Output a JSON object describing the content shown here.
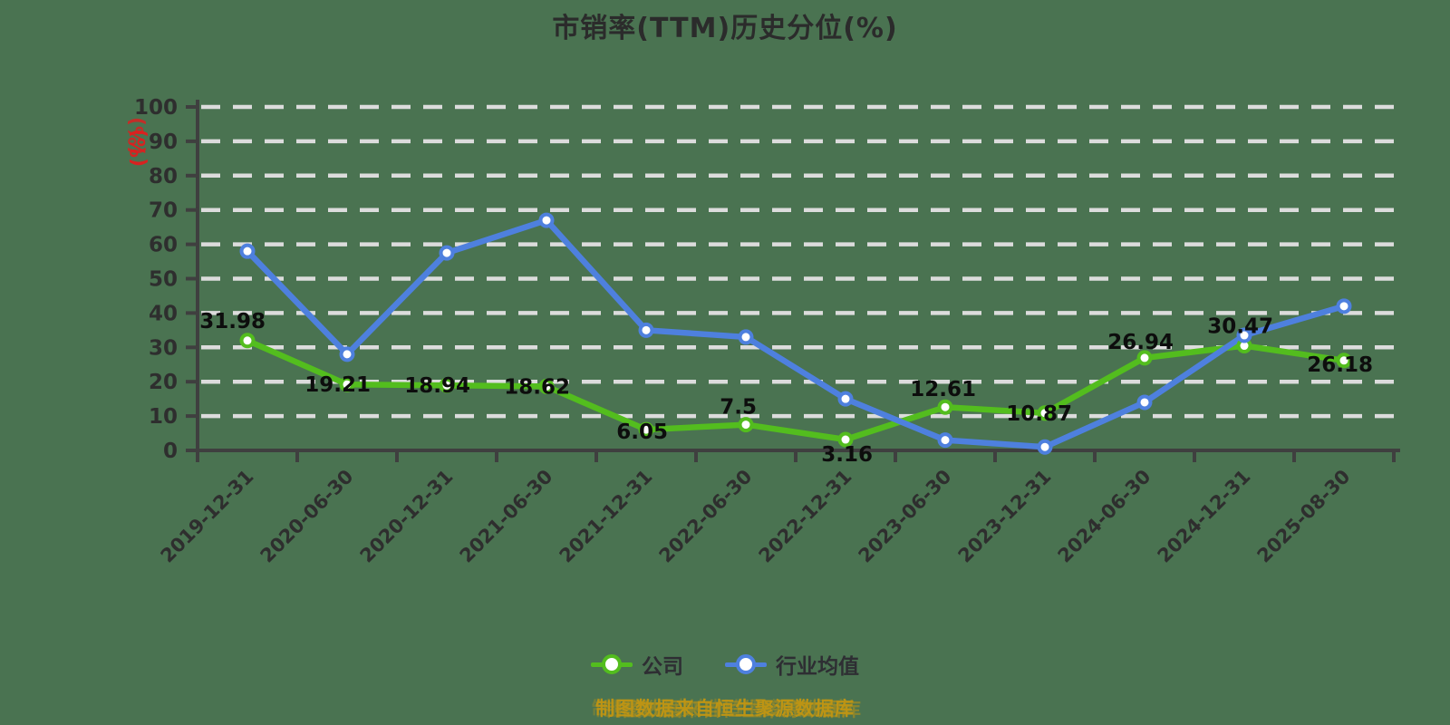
{
  "title": "市销率(TTM)历史分位(%)",
  "y_axis_unit": "(%)",
  "footer": "制图数据来自恒生聚源数据库",
  "colors": {
    "background": "#4a7351",
    "grid": "#dcdcdc",
    "axis": "#3f3f3f",
    "tick_label": "#2e2e2e",
    "data_label": "#0d0d0d",
    "company_green": "#53bd1e",
    "industry_blue": "#4e80de",
    "unit_red": "#e01e1e",
    "footer_gold": "#bd9414"
  },
  "chart_data": {
    "type": "line",
    "title": "市销率(TTM)历史分位(%)",
    "categories": [
      "2019-12-31",
      "2020-06-30",
      "2020-12-31",
      "2021-06-30",
      "2021-12-31",
      "2022-06-30",
      "2022-12-31",
      "2023-06-30",
      "2023-12-31",
      "2024-06-30",
      "2024-12-31",
      "2025-08-30"
    ],
    "series": [
      {
        "name": "公司",
        "color": "#53bd1e",
        "values": [
          31.98,
          19.21,
          18.94,
          18.62,
          6.05,
          7.5,
          3.16,
          12.61,
          10.87,
          26.94,
          30.47,
          26.18
        ],
        "labels_shown": true
      },
      {
        "name": "行业均值",
        "color": "#4e80de",
        "values": [
          58,
          28,
          57.5,
          67,
          35,
          33,
          15,
          3,
          1,
          14,
          33.5,
          42
        ],
        "labels_shown": false
      }
    ],
    "ylim": [
      0,
      100
    ],
    "y_tick_step": 10,
    "grid": "dashed-horizontal",
    "legend_position": "bottom"
  }
}
